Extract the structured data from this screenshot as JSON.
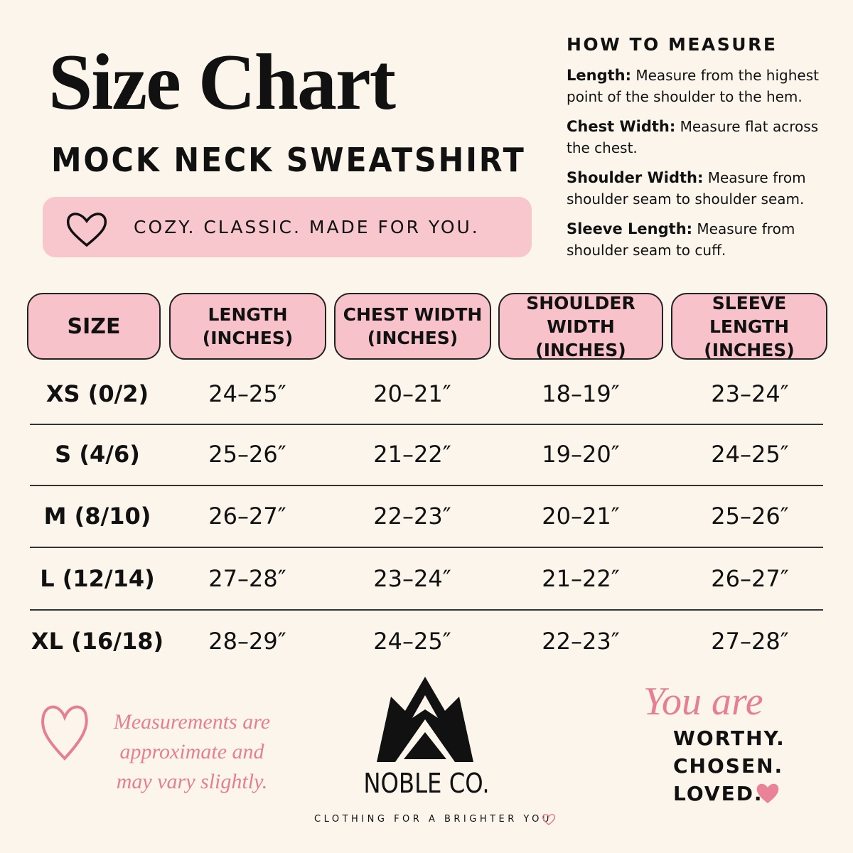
{
  "header": {
    "title": "Size Chart",
    "subtitle": "MOCK NECK SWEATSHIRT",
    "tagline": "COZY. CLASSIC. MADE FOR YOU."
  },
  "how_to_measure": {
    "title": "HOW TO MEASURE",
    "items": [
      {
        "term": "Length:",
        "text": "Measure from the highest point of the shoulder to the hem."
      },
      {
        "term": "Chest Width:",
        "text": "Measure flat across the chest."
      },
      {
        "term": "Shoulder Width:",
        "text": "Measure from shoulder seam to shoulder seam."
      },
      {
        "term": "Sleeve Length:",
        "text": "Measure from shoulder seam to cuff."
      }
    ]
  },
  "table": {
    "columns": [
      {
        "name": "SIZE"
      },
      {
        "name": "LENGTH",
        "unit": "(INCHES)"
      },
      {
        "name": "CHEST WIDTH",
        "unit": "(INCHES)"
      },
      {
        "name": "SHOULDER WIDTH",
        "unit": "(INCHES)"
      },
      {
        "name": "SLEEVE LENGTH",
        "unit": "(INCHES)"
      }
    ],
    "rows": [
      [
        "XS (0/2)",
        "24–25″",
        "20–21″",
        "18–19″",
        "23–24″"
      ],
      [
        "S (4/6)",
        "25–26″",
        "21–22″",
        "19–20″",
        "24–25″"
      ],
      [
        "M (8/10)",
        "26–27″",
        "22–23″",
        "20–21″",
        "25–26″"
      ],
      [
        "L (12/14)",
        "27–28″",
        "23–24″",
        "21–22″",
        "26–27″"
      ],
      [
        "XL (16/18)",
        "28–29″",
        "24–25″",
        "22–23″",
        "27–28″"
      ]
    ]
  },
  "footer": {
    "note": "Measurements are approximate and may vary slightly.",
    "brand": "NOBLE CO.",
    "brand_tagline": "CLOTHING FOR A BRIGHTER YOU",
    "affirmation_intro": "You are",
    "affirmations": [
      "WORTHY.",
      "CHOSEN.",
      "LOVED."
    ]
  }
}
